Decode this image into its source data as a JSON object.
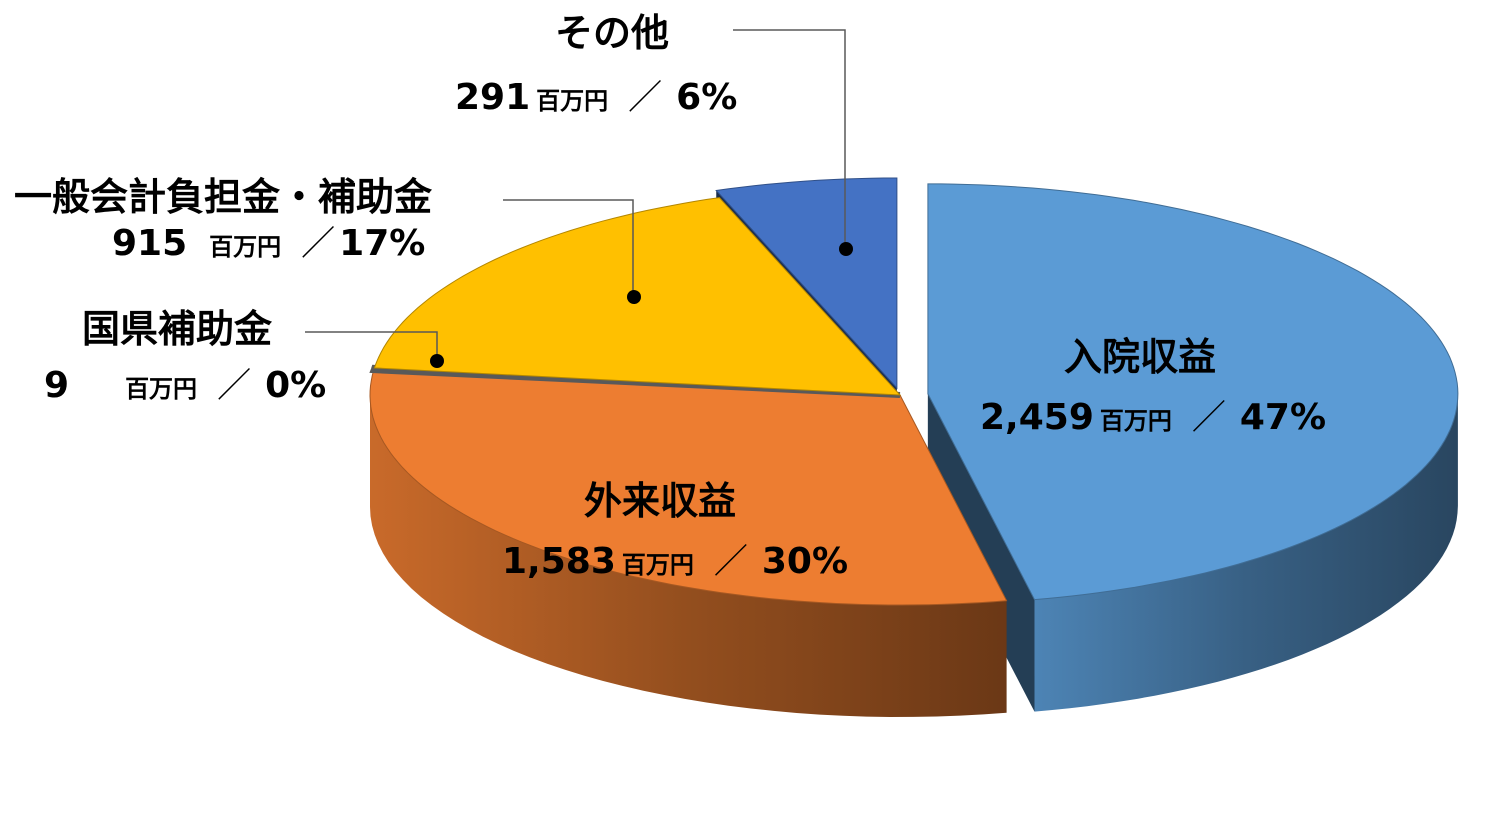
{
  "chart_data": {
    "type": "pie",
    "style": "3d-exploded",
    "unit": "百万円",
    "slices": [
      {
        "name": "入院収益",
        "value": 2459,
        "percent": "47%",
        "color": "#5B9BD5"
      },
      {
        "name": "外来収益",
        "value": 1583,
        "percent": "30%",
        "color": "#ED7D31"
      },
      {
        "name": "国県補助金",
        "value": 9,
        "percent": "0%",
        "color": "#7F7F7F"
      },
      {
        "name": "一般会計負担金・補助金",
        "value": 915,
        "percent": "17%",
        "color": "#FFC000"
      },
      {
        "name": "その他",
        "value": 291,
        "percent": "6%",
        "color": "#4472C4"
      }
    ]
  },
  "labels": {
    "inpatient": {
      "name": "入院収益",
      "value": "2,459",
      "unit": "百万円",
      "sep": "／",
      "pct": "47%"
    },
    "outpatient": {
      "name": "外来収益",
      "value": "1,583",
      "unit": "百万円",
      "sep": "／",
      "pct": "30%"
    },
    "subsidy": {
      "name": "国県補助金",
      "value": "9",
      "unit": "百万円",
      "sep": "／",
      "pct": "0%"
    },
    "general": {
      "name": "一般会計負担金・補助金",
      "value": "915",
      "unit": "百万円",
      "sep": "／",
      "pct": "17%"
    },
    "other": {
      "name": "その他",
      "value": "291",
      "unit": "百万円",
      "sep": "／",
      "pct": "6%"
    }
  }
}
